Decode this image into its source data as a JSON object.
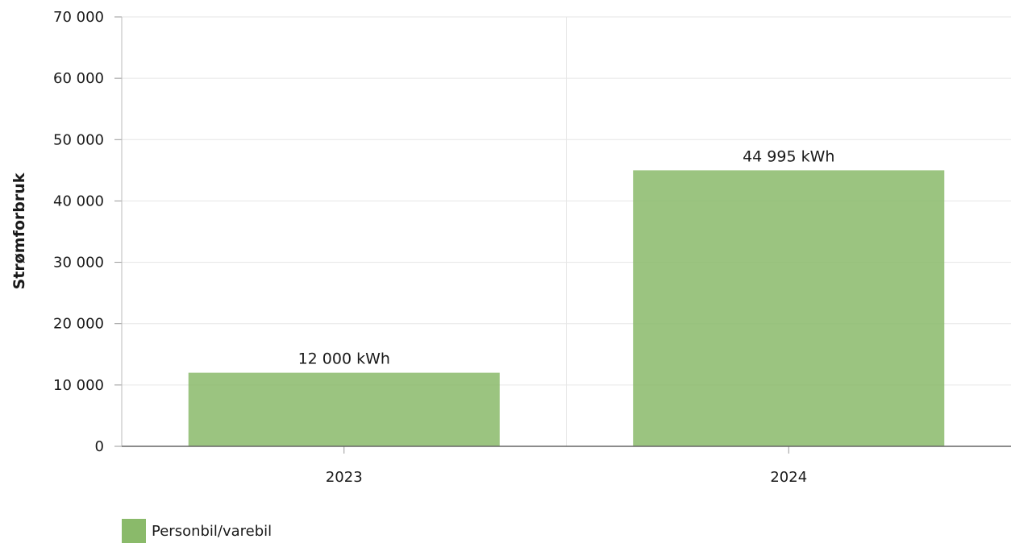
{
  "chart_data": {
    "type": "bar",
    "categories": [
      "2023",
      "2024"
    ],
    "series": [
      {
        "name": "Personbil/varebil",
        "values": [
          12000,
          44995
        ],
        "data_labels": [
          "12 000 kWh",
          "44 995 kWh"
        ],
        "color": "#8aba6a"
      }
    ],
    "ylabel": "Strømforbruk",
    "xlabel": "",
    "ylim": [
      0,
      70000
    ],
    "yticks": [
      0,
      10000,
      20000,
      30000,
      40000,
      50000,
      60000,
      70000
    ],
    "ytick_labels": [
      "0",
      "10 000",
      "20 000",
      "30 000",
      "40 000",
      "50 000",
      "60 000",
      "70 000"
    ],
    "grid": true,
    "legend_position": "bottom-left"
  }
}
